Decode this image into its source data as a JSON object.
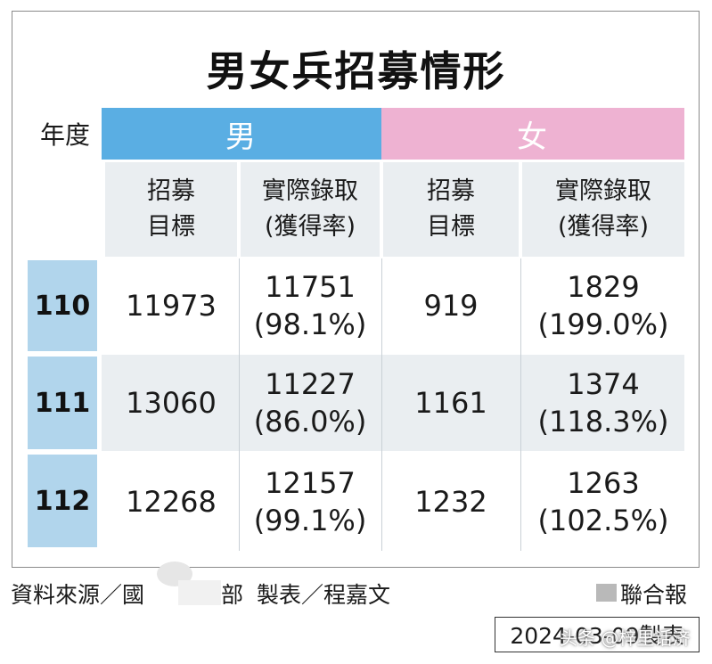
{
  "chart_data": {
    "type": "table",
    "title": "男女兵招募情形",
    "row_header_label": "年度",
    "groups": [
      "男",
      "女"
    ],
    "columns": [
      {
        "group": "男",
        "lines": [
          "招募",
          "目標"
        ]
      },
      {
        "group": "男",
        "lines": [
          "實際錄取",
          "(獲得率)"
        ]
      },
      {
        "group": "女",
        "lines": [
          "招募",
          "目標"
        ]
      },
      {
        "group": "女",
        "lines": [
          "實際錄取",
          "(獲得率)"
        ]
      }
    ],
    "rows": [
      {
        "year": "110",
        "male_target": "11973",
        "male_actual": "11751",
        "male_rate": "(98.1%)",
        "female_target": "919",
        "female_actual": "1829",
        "female_rate": "(199.0%)"
      },
      {
        "year": "111",
        "male_target": "13060",
        "male_actual": "11227",
        "male_rate": "(86.0%)",
        "female_target": "1161",
        "female_actual": "1374",
        "female_rate": "(118.3%)"
      },
      {
        "year": "112",
        "male_target": "12268",
        "male_actual": "12157",
        "male_rate": "(99.1%)",
        "female_target": "1232",
        "female_actual": "1263",
        "female_rate": "(102.5%)"
      }
    ]
  },
  "footer": {
    "source_prefix": "資料來源／國",
    "source_suffix": "部",
    "maker": "製表／程嘉文",
    "publisher": "聯合報",
    "date": "2024-03-09製表",
    "watermark": "头条 @梓里话济"
  },
  "colors": {
    "male_header": "#5aaee3",
    "female_header": "#eeb2d2",
    "subheader_bg": "#eaeef1",
    "year_cell": "#b1d5ec",
    "stripe": "#eaeef1"
  }
}
